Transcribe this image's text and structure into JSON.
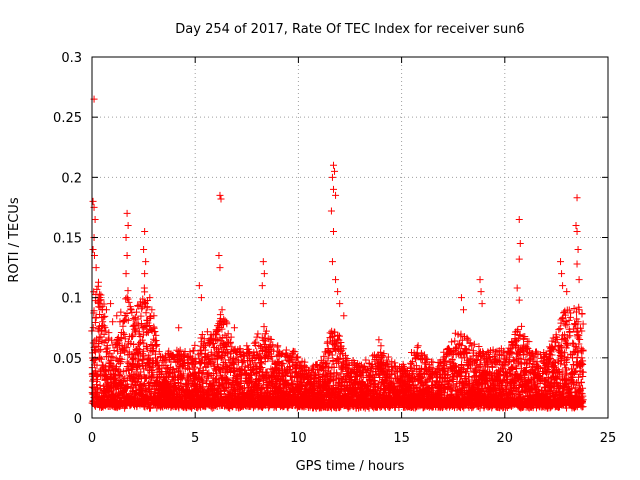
{
  "chart_data": {
    "type": "scatter",
    "title": "Day 254 of 2017, Rate Of TEC Index for receiver sun6",
    "xlabel": "GPS time / hours",
    "ylabel": "ROTI / TECUs",
    "xlim": [
      0,
      25
    ],
    "ylim": [
      0,
      0.3
    ],
    "xticks": [
      0,
      5,
      10,
      15,
      20,
      25
    ],
    "yticks": [
      0,
      0.05,
      0.1,
      0.15,
      0.2,
      0.25,
      0.3
    ],
    "xtick_labels": [
      "0",
      "5",
      "10",
      "15",
      "20",
      "25"
    ],
    "ytick_labels": [
      "0",
      "0.05",
      "0.1",
      "0.15",
      "0.2",
      "0.25",
      "0.3"
    ],
    "grid": true,
    "marker": "+",
    "color": "#ff0000",
    "series": [
      {
        "name": "ROTI",
        "points": [
          [
            0.1,
            0.265
          ],
          [
            0.05,
            0.18
          ],
          [
            0.1,
            0.175
          ],
          [
            0.15,
            0.165
          ],
          [
            0.1,
            0.15
          ],
          [
            0.05,
            0.14
          ],
          [
            0.12,
            0.135
          ],
          [
            0.2,
            0.125
          ],
          [
            0.3,
            0.1
          ],
          [
            0.5,
            0.09
          ],
          [
            0.7,
            0.09
          ],
          [
            0.9,
            0.095
          ],
          [
            1.0,
            0.08
          ],
          [
            1.2,
            0.085
          ],
          [
            1.7,
            0.17
          ],
          [
            1.75,
            0.16
          ],
          [
            1.65,
            0.15
          ],
          [
            1.7,
            0.135
          ],
          [
            1.65,
            0.12
          ],
          [
            1.7,
            0.1
          ],
          [
            1.9,
            0.09
          ],
          [
            2.55,
            0.155
          ],
          [
            2.5,
            0.14
          ],
          [
            2.6,
            0.13
          ],
          [
            2.55,
            0.12
          ],
          [
            2.8,
            0.1
          ],
          [
            2.9,
            0.09
          ],
          [
            3.0,
            0.085
          ],
          [
            4.2,
            0.075
          ],
          [
            5.2,
            0.11
          ],
          [
            5.3,
            0.1
          ],
          [
            5.5,
            0.06
          ],
          [
            6.2,
            0.185
          ],
          [
            6.25,
            0.182
          ],
          [
            6.15,
            0.135
          ],
          [
            6.2,
            0.125
          ],
          [
            6.3,
            0.09
          ],
          [
            6.4,
            0.08
          ],
          [
            6.9,
            0.075
          ],
          [
            7.5,
            0.06
          ],
          [
            8.3,
            0.13
          ],
          [
            8.35,
            0.12
          ],
          [
            8.25,
            0.11
          ],
          [
            8.3,
            0.095
          ],
          [
            8.4,
            0.07
          ],
          [
            9.0,
            0.06
          ],
          [
            11.7,
            0.21
          ],
          [
            11.75,
            0.205
          ],
          [
            11.65,
            0.2
          ],
          [
            11.7,
            0.19
          ],
          [
            11.8,
            0.185
          ],
          [
            11.6,
            0.172
          ],
          [
            11.7,
            0.155
          ],
          [
            11.65,
            0.13
          ],
          [
            11.8,
            0.115
          ],
          [
            11.9,
            0.105
          ],
          [
            12.0,
            0.095
          ],
          [
            12.2,
            0.085
          ],
          [
            13.9,
            0.065
          ],
          [
            14.0,
            0.06
          ],
          [
            15.8,
            0.06
          ],
          [
            17.9,
            0.1
          ],
          [
            18.0,
            0.09
          ],
          [
            18.8,
            0.115
          ],
          [
            18.85,
            0.105
          ],
          [
            18.9,
            0.095
          ],
          [
            20.7,
            0.165
          ],
          [
            20.75,
            0.145
          ],
          [
            20.7,
            0.132
          ],
          [
            20.6,
            0.108
          ],
          [
            20.7,
            0.098
          ],
          [
            22.7,
            0.13
          ],
          [
            22.75,
            0.12
          ],
          [
            22.8,
            0.11
          ],
          [
            23.0,
            0.105
          ],
          [
            23.5,
            0.183
          ],
          [
            23.45,
            0.16
          ],
          [
            23.5,
            0.155
          ],
          [
            23.55,
            0.14
          ],
          [
            23.5,
            0.128
          ],
          [
            23.6,
            0.115
          ],
          [
            23.6,
            0.09
          ],
          [
            23.55,
            0.08
          ]
        ]
      }
    ]
  }
}
